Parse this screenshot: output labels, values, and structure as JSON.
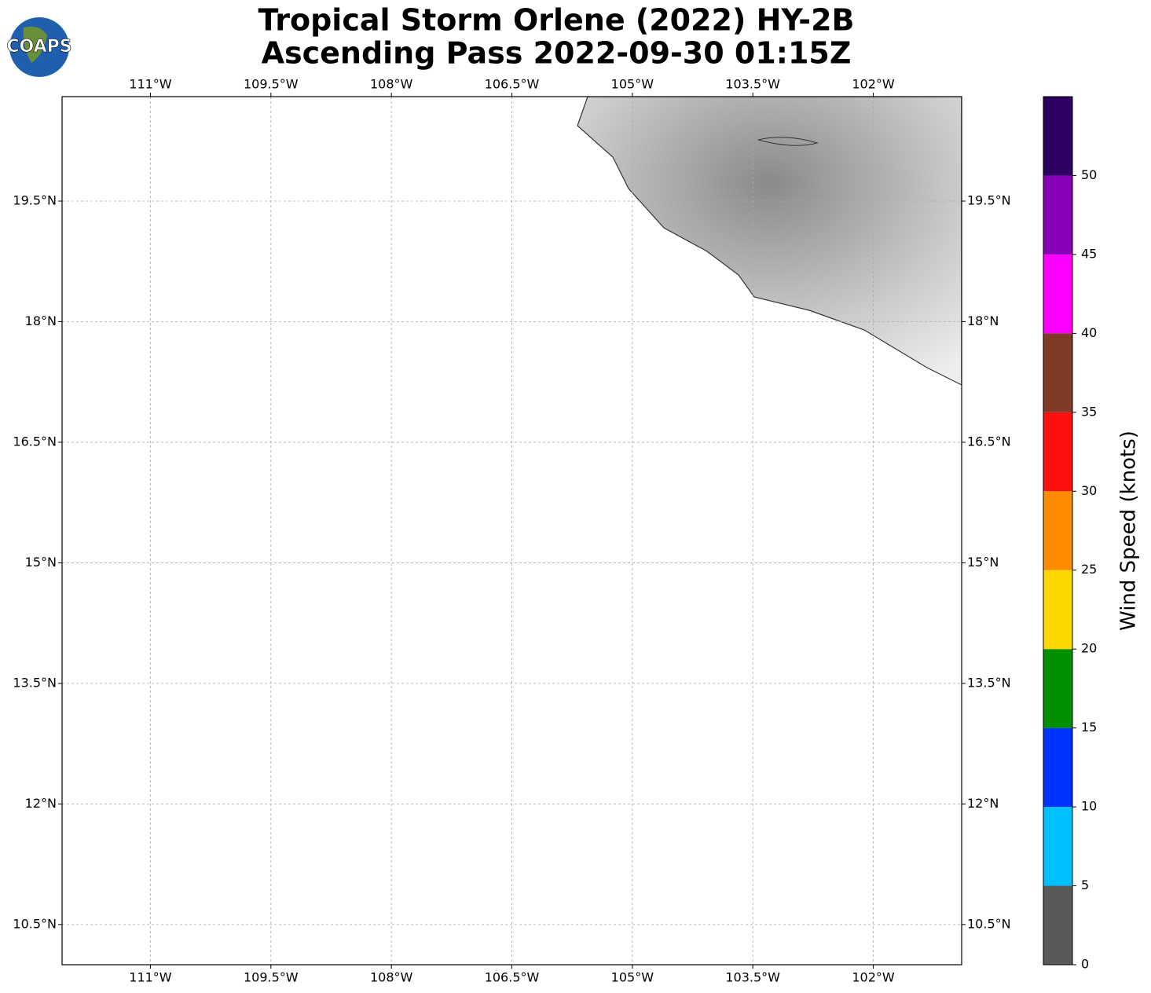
{
  "chart_data": {
    "type": "map",
    "title": [
      "Tropical Storm Orlene (2022) HY-2B",
      "Ascending Pass 2022-09-30 01:15Z"
    ],
    "logo": "COAPS",
    "xlim": [
      -112.1,
      -100.9
    ],
    "ylim": [
      10.0,
      20.8
    ],
    "xticks": [
      {
        "value": -111,
        "label": "111°W"
      },
      {
        "value": -109.5,
        "label": "109.5°W"
      },
      {
        "value": -108,
        "label": "108°W"
      },
      {
        "value": -106.5,
        "label": "106.5°W"
      },
      {
        "value": -105,
        "label": "105°W"
      },
      {
        "value": -103.5,
        "label": "103.5°W"
      },
      {
        "value": -102,
        "label": "102°W"
      }
    ],
    "yticks": [
      {
        "value": 10.5,
        "label": "10.5°N"
      },
      {
        "value": 12,
        "label": "12°N"
      },
      {
        "value": 13.5,
        "label": "13.5°N"
      },
      {
        "value": 15,
        "label": "15°N"
      },
      {
        "value": 16.5,
        "label": "16.5°N"
      },
      {
        "value": 18,
        "label": "18°N"
      },
      {
        "value": 19.5,
        "label": "19.5°N"
      }
    ],
    "grid": true,
    "colorbar": {
      "label": "Wind Speed (knots)",
      "bins": [
        0,
        5,
        10,
        15,
        20,
        25,
        30,
        35,
        40,
        45,
        50,
        55
      ],
      "colors": [
        "#595959",
        "#00bfff",
        "#0033ff",
        "#009000",
        "#ffd700",
        "#ff8c00",
        "#ff1010",
        "#7f3b25",
        "#ff00ff",
        "#8800b8",
        "#2c0060"
      ],
      "ticks": [
        0,
        5,
        10,
        15,
        20,
        25,
        30,
        35,
        40,
        45,
        50
      ]
    }
  }
}
